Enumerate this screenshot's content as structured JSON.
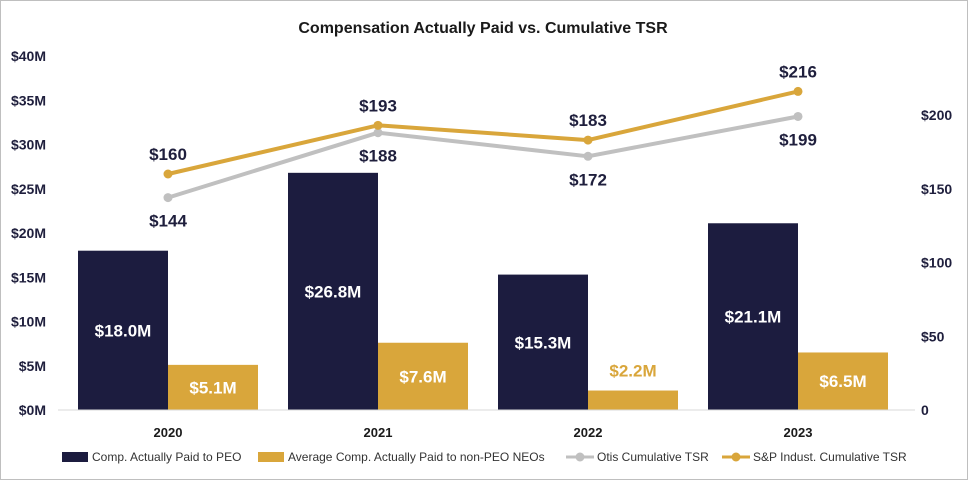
{
  "chart_data": {
    "type": "bar",
    "title": "Compensation Actually Paid vs. Cumulative TSR",
    "categories": [
      "2020",
      "2021",
      "2022",
      "2023"
    ],
    "left_axis": {
      "ticks": [
        "$0M",
        "$5M",
        "$10M",
        "$15M",
        "$20M",
        "$25M",
        "$30M",
        "$35M",
        "$40M"
      ],
      "range": [
        0,
        40
      ]
    },
    "right_axis": {
      "ticks": [
        "0",
        "$50",
        "$100",
        "$150",
        "$200"
      ],
      "range": [
        0,
        240
      ]
    },
    "bar_series": [
      {
        "name": "Comp. Actually Paid to PEO",
        "color": "#1c1c3f",
        "values": [
          18.0,
          26.8,
          15.3,
          21.1
        ],
        "labels": [
          "$18.0M",
          "$26.8M",
          "$15.3M",
          "$21.1M"
        ]
      },
      {
        "name": "Average Comp. Actually Paid to non-PEO NEOs",
        "color": "#d9a63b",
        "values": [
          5.1,
          7.6,
          2.2,
          6.5
        ],
        "labels": [
          "$5.1M",
          "$7.6M",
          "$2.2M",
          "$6.5M"
        ]
      }
    ],
    "line_series": [
      {
        "name": "Otis Cumulative TSR",
        "color": "#c0c0c0",
        "values": [
          144,
          188,
          172,
          199
        ],
        "labels": [
          "$144",
          "$188",
          "$172",
          "$199"
        ]
      },
      {
        "name": "S&P Indust. Cumulative TSR",
        "color": "#d9a63b",
        "values": [
          160,
          193,
          183,
          216
        ],
        "labels": [
          "$160",
          "$193",
          "$183",
          "$216"
        ]
      }
    ],
    "legend": [
      "Comp. Actually Paid to PEO",
      "Average Comp. Actually Paid to non-PEO NEOs",
      "Otis Cumulative TSR",
      "S&P Indust. Cumulative TSR"
    ],
    "label_colors": {
      "bar_inside": "#ffffff",
      "bar_above": "#d9a63b",
      "line": "#1f1f3d"
    }
  }
}
